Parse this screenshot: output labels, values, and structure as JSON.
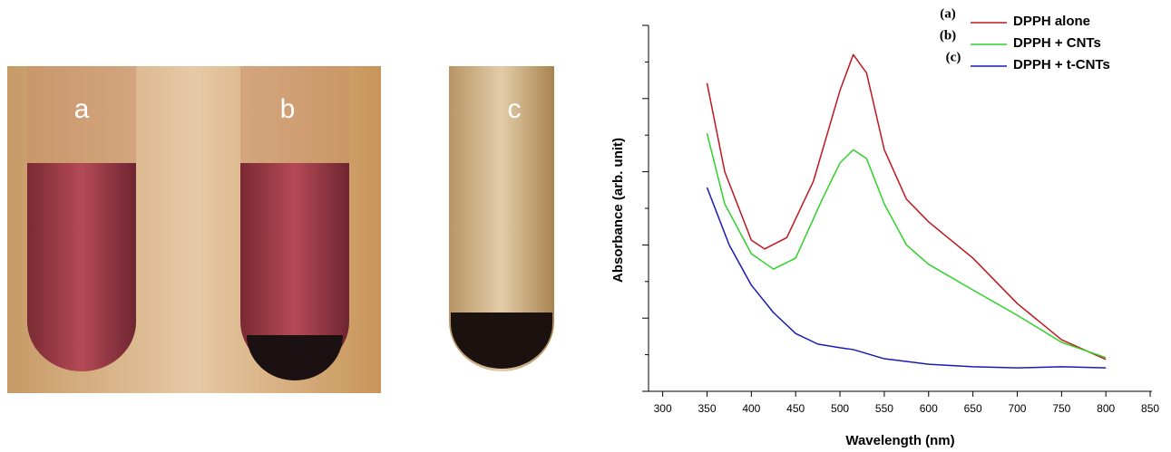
{
  "photo": {
    "labels": [
      "a",
      "b",
      "c"
    ]
  },
  "chart_data": {
    "type": "line",
    "xlabel": "Wavelength (nm)",
    "ylabel": "Absorbance (arb. unit)",
    "xlim": [
      284,
      852
    ],
    "xticks": [
      300,
      350,
      400,
      450,
      500,
      550,
      600,
      650,
      700,
      750,
      800,
      850
    ],
    "ylim": [
      0,
      10
    ],
    "yticks": [
      0,
      1,
      2,
      3,
      4,
      5,
      6,
      7,
      8,
      9,
      10
    ],
    "legend_prefixes": [
      "(a)",
      "(b)",
      "(c)"
    ],
    "series": [
      {
        "name": "DPPH alone",
        "color": "#c0171f",
        "x": [
          350,
          370,
          400,
          415,
          440,
          470,
          500,
          515,
          530,
          550,
          575,
          600,
          650,
          700,
          750,
          800
        ],
        "values": [
          8.42,
          6.0,
          4.13,
          3.89,
          4.2,
          5.74,
          8.22,
          9.2,
          8.7,
          6.6,
          5.25,
          4.63,
          3.64,
          2.4,
          1.41,
          0.87
        ]
      },
      {
        "name": "DPPH + CNTs",
        "color": "#2fd12a",
        "x": [
          350,
          370,
          400,
          425,
          450,
          480,
          500,
          515,
          530,
          550,
          575,
          600,
          650,
          700,
          750,
          800
        ],
        "values": [
          7.05,
          5.12,
          3.76,
          3.34,
          3.64,
          5.25,
          6.24,
          6.6,
          6.36,
          5.12,
          4.0,
          3.47,
          2.77,
          2.08,
          1.34,
          0.92
        ]
      },
      {
        "name": "DPPH + t-CNTs",
        "color": "#1a1ab8",
        "x": [
          350,
          375,
          400,
          425,
          450,
          475,
          500,
          515,
          550,
          600,
          650,
          700,
          750,
          800
        ],
        "values": [
          5.57,
          4.0,
          2.9,
          2.15,
          1.58,
          1.29,
          1.19,
          1.14,
          0.89,
          0.74,
          0.67,
          0.64,
          0.67,
          0.64
        ]
      }
    ]
  }
}
